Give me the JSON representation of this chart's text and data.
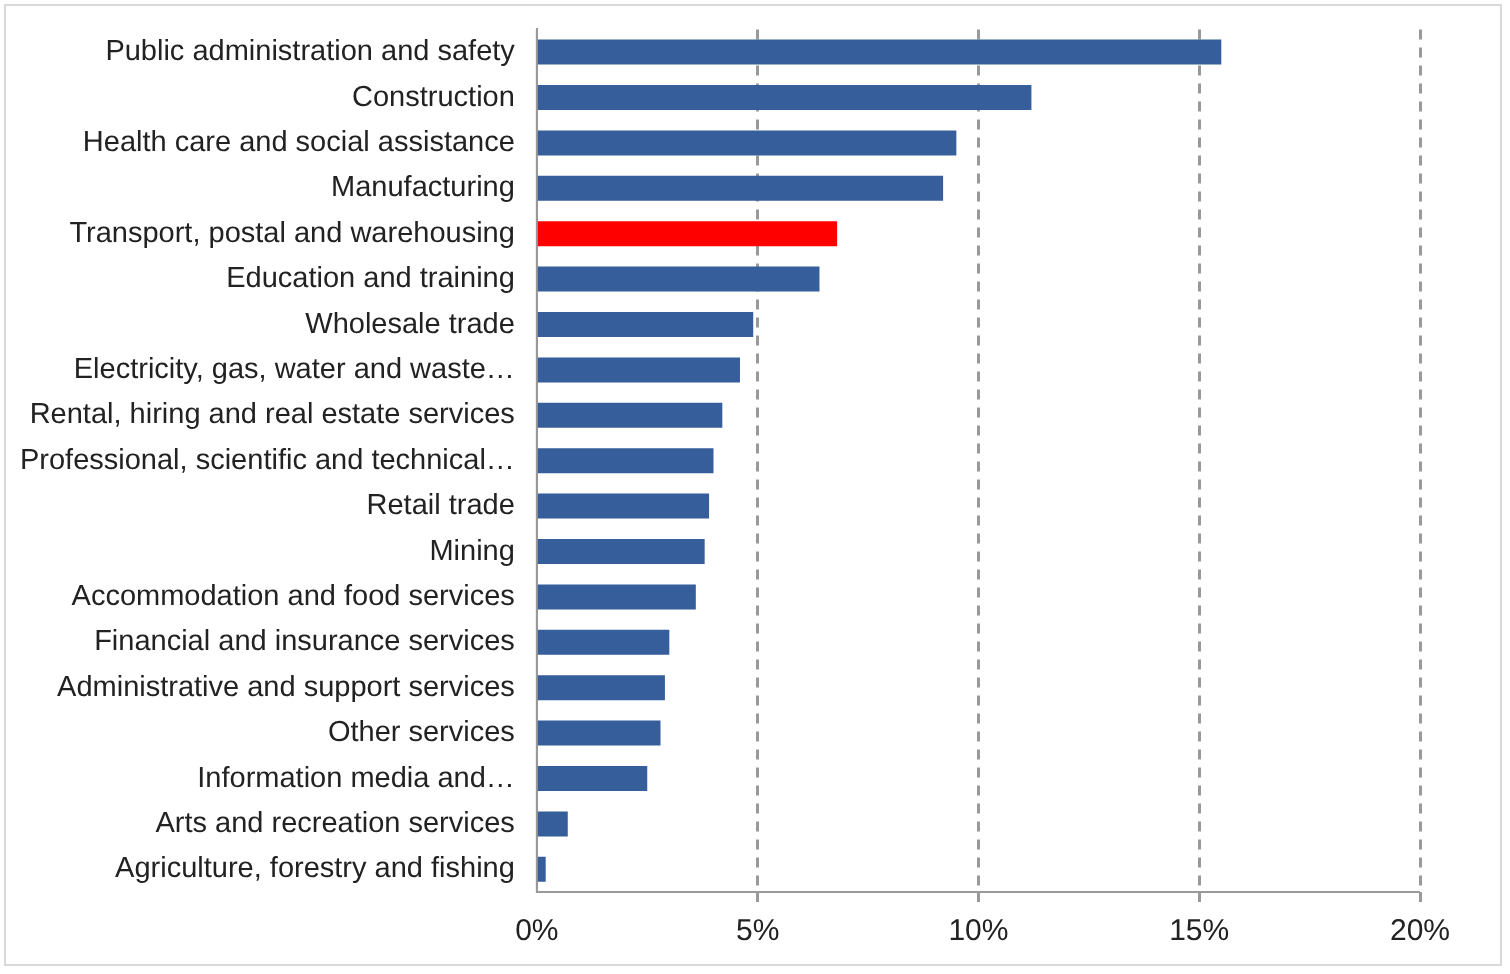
{
  "chart_data": {
    "type": "bar",
    "orientation": "horizontal",
    "categories": [
      "Public administration and safety",
      "Construction",
      "Health care and social assistance",
      "Manufacturing",
      "Transport, postal and warehousing",
      "Education and training",
      "Wholesale trade",
      "Electricity, gas, water and waste…",
      "Rental, hiring and real estate services",
      "Professional, scientific and technical…",
      "Retail trade",
      "Mining",
      "Accommodation and food services",
      "Financial and insurance services",
      "Administrative and support services",
      "Other services",
      "Information media and…",
      "Arts and recreation services",
      "Agriculture, forestry and fishing"
    ],
    "values": [
      15.5,
      11.2,
      9.5,
      9.2,
      6.8,
      6.4,
      4.9,
      4.6,
      4.2,
      4.0,
      3.9,
      3.8,
      3.6,
      3.0,
      2.9,
      2.8,
      2.5,
      0.7,
      0.2
    ],
    "colors": [
      "#355e9b",
      "#355e9b",
      "#355e9b",
      "#355e9b",
      "#ff0000",
      "#355e9b",
      "#355e9b",
      "#355e9b",
      "#355e9b",
      "#355e9b",
      "#355e9b",
      "#355e9b",
      "#355e9b",
      "#355e9b",
      "#355e9b",
      "#355e9b",
      "#355e9b",
      "#355e9b",
      "#355e9b"
    ],
    "xlim": [
      0,
      20
    ],
    "xticks": [
      {
        "value": 0,
        "label": "0%"
      },
      {
        "value": 5,
        "label": "5%"
      },
      {
        "value": 10,
        "label": "10%"
      },
      {
        "value": 15,
        "label": "15%"
      },
      {
        "value": 20,
        "label": "20%"
      }
    ],
    "grid": "x",
    "legend": false
  }
}
